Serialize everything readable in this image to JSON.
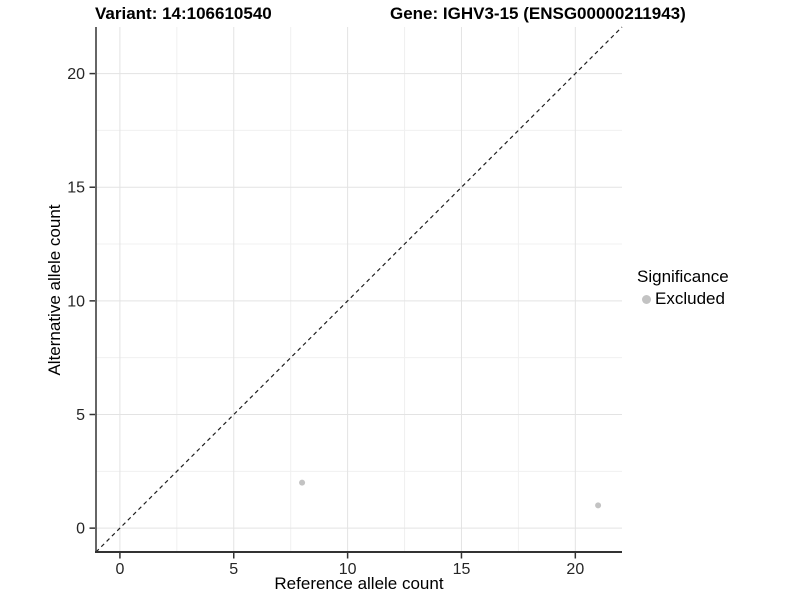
{
  "header": {
    "variant_title": "Variant: 14:106610540",
    "gene_title": "Gene: IGHV3-15 (ENSG00000211943)"
  },
  "chart_data": {
    "type": "scatter",
    "xlabel": "Reference allele count",
    "ylabel": "Alternative allele count",
    "xlim": [
      -1.05,
      22.05
    ],
    "ylim": [
      -1.05,
      22.05
    ],
    "x_ticks": [
      0,
      5,
      10,
      15,
      20
    ],
    "y_ticks": [
      0,
      5,
      10,
      15,
      20
    ],
    "x_minor_ticks": [
      2.5,
      7.5,
      12.5,
      17.5
    ],
    "y_minor_ticks": [
      2.5,
      7.5,
      12.5,
      17.5
    ],
    "grid": "major+minor",
    "legend_position": "right",
    "identity_line": {
      "slope": 1,
      "intercept": 0,
      "style": "dashed",
      "color": "#1f1f1f"
    },
    "series": [
      {
        "name": "Excluded",
        "color": "#c3c3c3",
        "marker_radius": 3,
        "points": [
          {
            "x": 8,
            "y": 2
          },
          {
            "x": 21,
            "y": 1
          }
        ]
      }
    ],
    "colors": {
      "grid_major": "#e3e3e3",
      "grid_minor": "#f0f0f0",
      "axis_line": "#333333",
      "tick_mark": "#333333",
      "tick_label": "#262626",
      "background": "#ffffff"
    }
  },
  "legend": {
    "title": "Significance",
    "entries": [
      {
        "label": "Excluded",
        "color": "#c3c3c3"
      }
    ]
  }
}
